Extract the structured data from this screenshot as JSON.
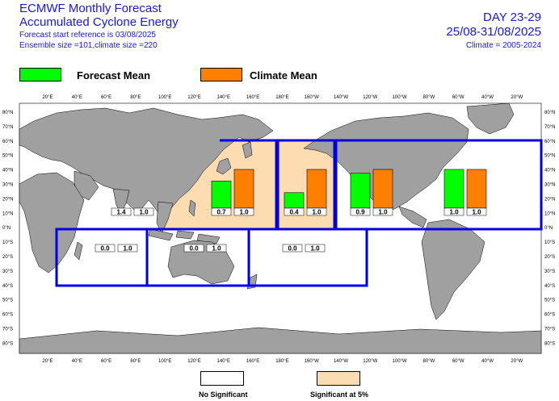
{
  "header": {
    "title1": "ECMWF Monthly Forecast",
    "title2": "Accumulated Cyclone Energy",
    "sub1": "Forecast start reference is 03/08/2025",
    "sub2": "Ensemble size =101,climate size =220",
    "day": "DAY 23-29",
    "dates": "25/08-31/08/2025",
    "climate_period": "Climate = 2005-2024"
  },
  "legend": {
    "forecast": {
      "label": "Forecast Mean",
      "color": "#00ff00"
    },
    "climate": {
      "label": "Climate Mean",
      "color": "#ff8000"
    },
    "no_sig": {
      "label": "No Significant",
      "color": "#ffffff"
    },
    "sig": {
      "label": "Significant at 5%",
      "color": "#fcdcb0"
    }
  },
  "map": {
    "lon_labels": [
      "20°E",
      "40°E",
      "60°E",
      "80°E",
      "100°E",
      "120°E",
      "140°E",
      "160°E",
      "180°E",
      "160°W",
      "140°W",
      "120°W",
      "100°W",
      "80°W",
      "60°W",
      "40°W",
      "20°W"
    ],
    "lat_labels": [
      "80°N",
      "70°N",
      "60°N",
      "50°N",
      "40°N",
      "30°N",
      "20°N",
      "10°N",
      "0°N",
      "10°S",
      "20°S",
      "30°S",
      "40°S",
      "50°S",
      "60°S",
      "70°S",
      "80°S"
    ],
    "land_color": "#a0a0a0",
    "region_border_color": "#0000e6"
  },
  "chart_data": {
    "type": "bar",
    "bar_height_scale": "ratio to climate mean",
    "series": [
      {
        "name": "Forecast Mean",
        "color": "#00ff00"
      },
      {
        "name": "Climate Mean",
        "color": "#ff8000"
      }
    ],
    "regions": [
      {
        "forecast": 1.4,
        "forecast_label": "1.4",
        "climate": 1.0,
        "climate_label": "1.0",
        "significant": false,
        "bars_shown": false
      },
      {
        "forecast": 0.7,
        "forecast_label": "0.7",
        "climate": 1.0,
        "climate_label": "1.0",
        "significant": true,
        "bars_shown": true
      },
      {
        "forecast": 0.4,
        "forecast_label": "0.4",
        "climate": 1.0,
        "climate_label": "1.0",
        "significant": true,
        "bars_shown": true
      },
      {
        "forecast": 0.9,
        "forecast_label": "0.9",
        "climate": 1.0,
        "climate_label": "1.0",
        "significant": false,
        "bars_shown": true
      },
      {
        "forecast": 1.0,
        "forecast_label": "1.0",
        "climate": 1.0,
        "climate_label": "1.0",
        "significant": false,
        "bars_shown": true
      },
      {
        "forecast": 0.0,
        "forecast_label": "0.0",
        "climate": 1.0,
        "climate_label": "1.0",
        "significant": false,
        "bars_shown": false
      },
      {
        "forecast": 0.0,
        "forecast_label": "0.0",
        "climate": 1.0,
        "climate_label": "1.0",
        "significant": false,
        "bars_shown": false
      },
      {
        "forecast": 0.0,
        "forecast_label": "0.0",
        "climate": 1.0,
        "climate_label": "1.0",
        "significant": false,
        "bars_shown": false
      }
    ]
  }
}
